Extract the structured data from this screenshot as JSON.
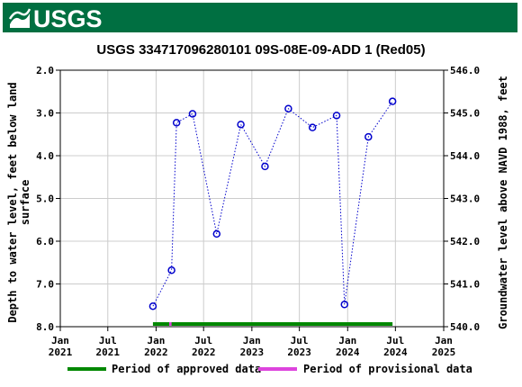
{
  "banner": {
    "logo_text": "USGS",
    "logo_icon": "usgs-wave-icon",
    "color": "#006f41"
  },
  "chart_data": {
    "type": "scatter",
    "title": "USGS 334717096280101 09S-08E-09-ADD 1 (Red05)",
    "ylabel_left": [
      "Depth to water level, feet below land",
      "surface"
    ],
    "ylabel_right": "Groundwater level above NAVD 1988, feet",
    "y_left_range": [
      2.0,
      8.0
    ],
    "y_left_inverted": true,
    "y_left_ticks": [
      "2.0",
      "3.0",
      "4.0",
      "5.0",
      "6.0",
      "7.0",
      "8.0"
    ],
    "y_right_range": [
      540.0,
      546.0
    ],
    "y_right_ticks": [
      "546.0",
      "545.0",
      "544.0",
      "543.0",
      "542.0",
      "541.0",
      "540.0"
    ],
    "x_range": [
      "2021-01-01",
      "2025-01-01"
    ],
    "x_ticks": [
      {
        "date": "2021-01-01",
        "line1": "Jan",
        "line2": "2021"
      },
      {
        "date": "2021-07-01",
        "line1": "Jul",
        "line2": "2021"
      },
      {
        "date": "2022-01-01",
        "line1": "Jan",
        "line2": "2022"
      },
      {
        "date": "2022-07-01",
        "line1": "Jul",
        "line2": "2022"
      },
      {
        "date": "2023-01-01",
        "line1": "Jan",
        "line2": "2023"
      },
      {
        "date": "2023-07-01",
        "line1": "Jul",
        "line2": "2023"
      },
      {
        "date": "2024-01-01",
        "line1": "Jan",
        "line2": "2024"
      },
      {
        "date": "2024-07-01",
        "line1": "Jul",
        "line2": "2024"
      },
      {
        "date": "2025-01-01",
        "line1": "Jan",
        "line2": "2025"
      }
    ],
    "grid": true,
    "series": [
      {
        "points": [
          {
            "date": "2021-12-20",
            "depth": 7.52
          },
          {
            "date": "2022-03-01",
            "depth": 6.68
          },
          {
            "date": "2022-03-20",
            "depth": 3.23
          },
          {
            "date": "2022-05-20",
            "depth": 3.02
          },
          {
            "date": "2022-08-20",
            "depth": 5.83
          },
          {
            "date": "2022-11-20",
            "depth": 3.27
          },
          {
            "date": "2023-02-20",
            "depth": 4.25
          },
          {
            "date": "2023-05-20",
            "depth": 2.9
          },
          {
            "date": "2023-08-20",
            "depth": 3.34
          },
          {
            "date": "2023-11-20",
            "depth": 3.06
          },
          {
            "date": "2023-12-20",
            "depth": 7.48
          },
          {
            "date": "2024-03-20",
            "depth": 3.56
          },
          {
            "date": "2024-06-20",
            "depth": 2.73
          }
        ],
        "color": "#0000cc"
      }
    ],
    "periods": [
      {
        "type": "approved",
        "start": "2021-12-20",
        "end": "2024-06-20",
        "color": "#008800"
      },
      {
        "type": "provisional",
        "start": "2022-02-20",
        "end": "2022-03-01",
        "color": "#dd44dd"
      }
    ],
    "legend": [
      {
        "label": "Period of approved data",
        "color": "#008800"
      },
      {
        "label": "Period of provisional data",
        "color": "#dd44dd"
      }
    ],
    "legend_position": "bottom"
  }
}
